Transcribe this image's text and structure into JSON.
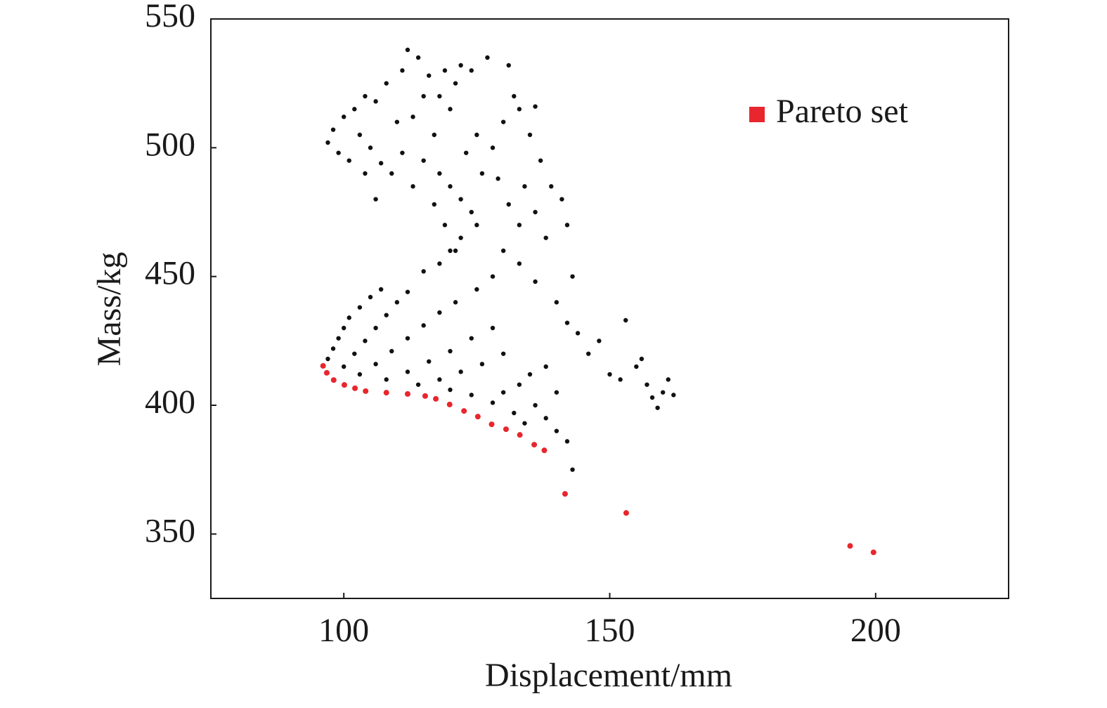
{
  "chart_data": {
    "type": "scatter",
    "x_label": "Displacement/mm",
    "y_label": "Mass/kg",
    "xlim": [
      75,
      225
    ],
    "ylim": [
      325,
      550
    ],
    "xticks": [
      100,
      150,
      200
    ],
    "yticks": [
      350,
      400,
      450,
      500,
      550
    ],
    "grid": false,
    "legend": "upper right",
    "series": [
      {
        "color": "#111111",
        "x": [
          97,
          98,
          99,
          100,
          101,
          103,
          105,
          107,
          100,
          102,
          104,
          106,
          108,
          110,
          112,
          103,
          106,
          109,
          112,
          115,
          118,
          121,
          108,
          112,
          116,
          120,
          124,
          128,
          114,
          118,
          122,
          126,
          130,
          120,
          124,
          128,
          132,
          134,
          130,
          133,
          136,
          138,
          140,
          142,
          143,
          135,
          140,
          138,
          125,
          128,
          118,
          120,
          115,
          122,
          125,
          130,
          133,
          136,
          140,
          142,
          144,
          146,
          148,
          150,
          152,
          155,
          157,
          158,
          159,
          160,
          161,
          162,
          156,
          153,
          143,
          138,
          136,
          141,
          142,
          97,
          98,
          100,
          102,
          104,
          106,
          99,
          101,
          103,
          105,
          107,
          109,
          110,
          108,
          111,
          112,
          114,
          116,
          118,
          120,
          117,
          115,
          118,
          120,
          122,
          124,
          126,
          128,
          130,
          132,
          127,
          124,
          121,
          131,
          133,
          135,
          137,
          139,
          119,
          121,
          117,
          123,
          125,
          129,
          131,
          133,
          134,
          136,
          113,
          111,
          106,
          104,
          113,
          115,
          119,
          122
        ],
        "values": [
          418,
          422,
          426,
          430,
          434,
          438,
          442,
          445,
          415,
          420,
          425,
          430,
          435,
          440,
          444,
          412,
          416,
          421,
          426,
          431,
          436,
          440,
          410,
          413,
          417,
          421,
          426,
          430,
          408,
          410,
          413,
          416,
          420,
          406,
          404,
          401,
          397,
          393,
          405,
          408,
          400,
          395,
          390,
          386,
          375,
          412,
          405,
          415,
          445,
          450,
          455,
          460,
          452,
          465,
          470,
          460,
          455,
          448,
          440,
          432,
          428,
          420,
          425,
          412,
          410,
          415,
          408,
          403,
          399,
          405,
          410,
          404,
          418,
          433,
          450,
          465,
          475,
          480,
          470,
          502,
          507,
          512,
          515,
          520,
          518,
          498,
          495,
          505,
          500,
          494,
          490,
          510,
          525,
          530,
          538,
          535,
          528,
          520,
          515,
          505,
          495,
          490,
          485,
          480,
          475,
          490,
          500,
          510,
          520,
          535,
          530,
          525,
          532,
          515,
          505,
          495,
          485,
          470,
          460,
          478,
          498,
          505,
          488,
          478,
          470,
          485,
          516,
          485,
          498,
          480,
          490,
          512,
          520,
          530,
          532
        ]
      },
      {
        "name": "Pareto set",
        "color": "#e8262d",
        "x": [
          96.1,
          96.8,
          98.1,
          100.1,
          102.1,
          104.1,
          108.0,
          112.0,
          115.3,
          117.3,
          119.9,
          122.6,
          125.2,
          127.8,
          130.5,
          133.1,
          135.8,
          137.7,
          141.6,
          153.1,
          195.2,
          199.6
        ],
        "values": [
          415.3,
          412.6,
          409.8,
          407.9,
          406.6,
          405.5,
          404.9,
          404.4,
          403.6,
          402.5,
          400.3,
          397.8,
          395.6,
          392.6,
          390.7,
          388.5,
          384.7,
          382.5,
          365.6,
          358.2,
          345.4,
          342.9
        ]
      }
    ]
  }
}
